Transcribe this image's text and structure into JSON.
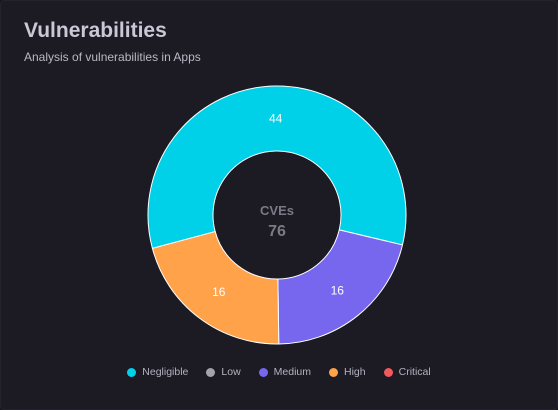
{
  "header": {
    "title": "Vulnerabilities",
    "subtitle": "Analysis of vulnerabilities in Apps"
  },
  "chart_data": {
    "type": "pie",
    "title": "",
    "center_label": "CVEs",
    "total": "76",
    "categories": [
      "Negligible",
      "Low",
      "Medium",
      "High",
      "Critical"
    ],
    "values": [
      44,
      0,
      16,
      16,
      0
    ],
    "colors": [
      "#00d1e8",
      "#a3a3ab",
      "#7767ef",
      "#ffa24a",
      "#f2585e"
    ],
    "legend_position": "bottom"
  }
}
